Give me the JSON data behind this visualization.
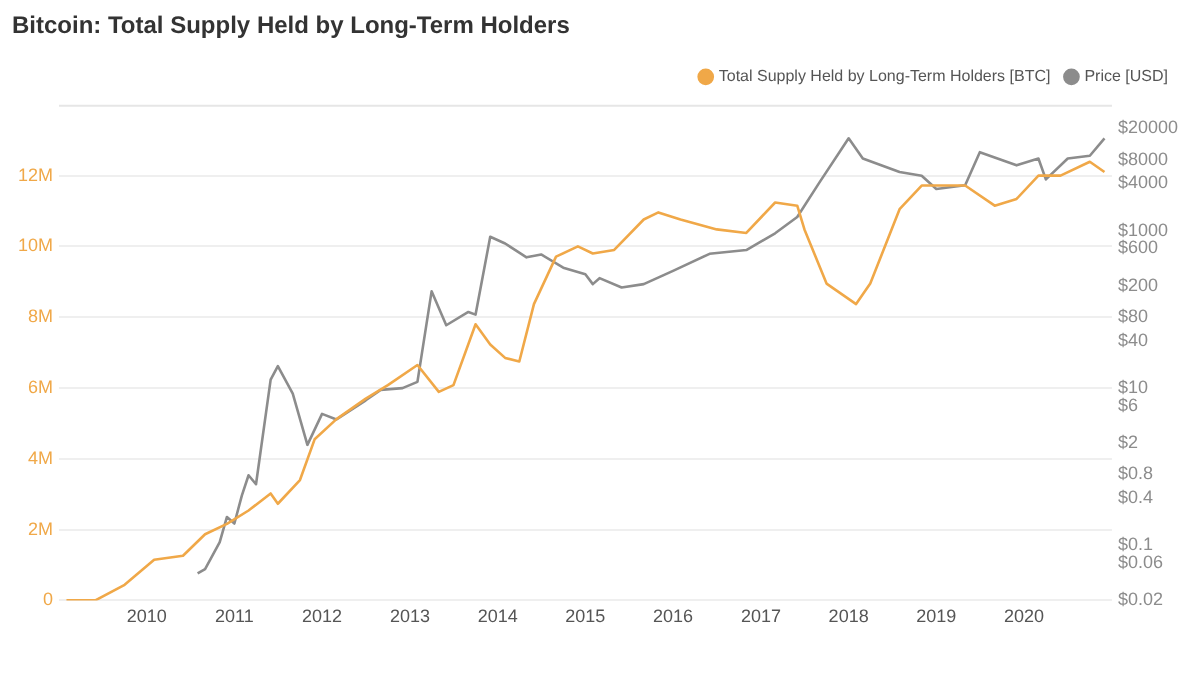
{
  "chart_data": {
    "type": "line",
    "title": "Bitcoin: Total Supply Held by Long-Term Holders",
    "xlim": [
      "2009-01",
      "2021-01"
    ],
    "xticks": [
      "2010",
      "2011",
      "2012",
      "2013",
      "2014",
      "2015",
      "2016",
      "2017",
      "2018",
      "2019",
      "2020"
    ],
    "ylim": [
      0,
      14000000
    ],
    "yticks": [
      0,
      {
        "value": 2000000,
        "label": "2M"
      },
      {
        "value": 4000000,
        "label": "4M"
      },
      {
        "value": 6000000,
        "label": "6M"
      },
      {
        "value": 8000000,
        "label": "8M"
      },
      {
        "value": 10000000,
        "label": "10M"
      },
      {
        "value": 12000000,
        "label": "12M"
      }
    ],
    "y2lim": [
      0.02,
      40000
    ],
    "y2ticks": [
      {
        "value": 0.02,
        "label": "$0.02"
      },
      {
        "value": 0.06,
        "label": "$0.06"
      },
      {
        "value": 0.1,
        "label": "$0.1"
      },
      {
        "value": 0.4,
        "label": "$0.4"
      },
      {
        "value": 0.8,
        "label": "$0.8"
      },
      {
        "value": 2,
        "label": "$2"
      },
      {
        "value": 6,
        "label": "$6"
      },
      {
        "value": 10,
        "label": "$10"
      },
      {
        "value": 40,
        "label": "$40"
      },
      {
        "value": 80,
        "label": "$80"
      },
      {
        "value": 200,
        "label": "$200"
      },
      {
        "value": 600,
        "label": "$600"
      },
      {
        "value": 1000,
        "label": "$1000"
      },
      {
        "value": 4000,
        "label": "$4000"
      },
      {
        "value": 8000,
        "label": "$8000"
      },
      {
        "value": 20000,
        "label": "$20000"
      }
    ],
    "log": "y2",
    "grid": "y",
    "legend": "top right",
    "marker": "none",
    "line_style": "solid",
    "series": [
      {
        "name": "Total Supply Held by Long-Term Holders [BTC]",
        "color": "#f0a848",
        "x": [
          "2009-02",
          "2009-06",
          "2009-10",
          "2010-02",
          "2010-06",
          "2010-09",
          "2010-12",
          "2011-03",
          "2011-06",
          "2011-07",
          "2011-10",
          "2011-12",
          "2012-03",
          "2012-07",
          "2012-10",
          "2013-02",
          "2013-05",
          "2013-07",
          "2013-10",
          "2013-12",
          "2014-02",
          "2014-04",
          "2014-06",
          "2014-09",
          "2014-12",
          "2015-02",
          "2015-05",
          "2015-09",
          "2015-11",
          "2016-02",
          "2016-07",
          "2016-11",
          "2017-03",
          "2017-06",
          "2017-07",
          "2017-10",
          "2018-02",
          "2018-04",
          "2018-08",
          "2018-11",
          "2019-05",
          "2019-09",
          "2019-12",
          "2020-03",
          "2020-06",
          "2020-10",
          "2020-12"
        ],
        "values": [
          0,
          0,
          440000,
          1150000,
          1260000,
          1870000,
          2160000,
          2540000,
          3020000,
          2730000,
          3400000,
          4550000,
          5120000,
          5700000,
          6080000,
          6650000,
          5890000,
          6080000,
          7800000,
          7230000,
          6850000,
          6750000,
          8370000,
          9710000,
          10000000,
          9800000,
          9900000,
          10760000,
          10960000,
          10760000,
          10480000,
          10380000,
          11240000,
          11150000,
          10480000,
          8950000,
          8370000,
          8950000,
          11050000,
          11720000,
          11720000,
          11150000,
          11340000,
          12000000,
          12000000,
          12390000,
          12100000
        ]
      },
      {
        "name": "Price [USD]",
        "color": "#8c8c8c",
        "axis": "y2",
        "x": [
          "2010-08",
          "2010-09",
          "2010-11",
          "2010-12",
          "2011-01",
          "2011-02",
          "2011-03",
          "2011-04",
          "2011-06",
          "2011-07",
          "2011-09",
          "2011-11",
          "2012-01",
          "2012-03",
          "2012-07",
          "2012-09",
          "2012-12",
          "2013-02",
          "2013-04",
          "2013-06",
          "2013-09",
          "2013-10",
          "2013-12",
          "2014-02",
          "2014-05",
          "2014-07",
          "2014-10",
          "2015-01",
          "2015-02",
          "2015-03",
          "2015-06",
          "2015-09",
          "2016-01",
          "2016-06",
          "2016-11",
          "2017-03",
          "2017-06",
          "2017-09",
          "2018-01",
          "2018-03",
          "2018-08",
          "2018-11",
          "2019-01",
          "2019-05",
          "2019-07",
          "2019-12",
          "2020-03",
          "2020-04",
          "2020-07",
          "2020-10",
          "2020-12"
        ],
        "values": [
          0.044,
          0.05,
          0.11,
          0.23,
          0.19,
          0.43,
          0.78,
          0.6,
          12.8,
          19,
          8.5,
          1.9,
          4.7,
          4,
          7,
          9.5,
          10,
          12,
          170,
          63,
          93,
          86,
          840,
          690,
          460,
          500,
          340,
          280,
          210,
          250,
          190,
          210,
          310,
          510,
          570,
          930,
          1500,
          4100,
          15000,
          8300,
          5600,
          5000,
          3400,
          3800,
          10000,
          6800,
          8300,
          4500,
          8300,
          9000,
          15000
        ]
      }
    ]
  }
}
